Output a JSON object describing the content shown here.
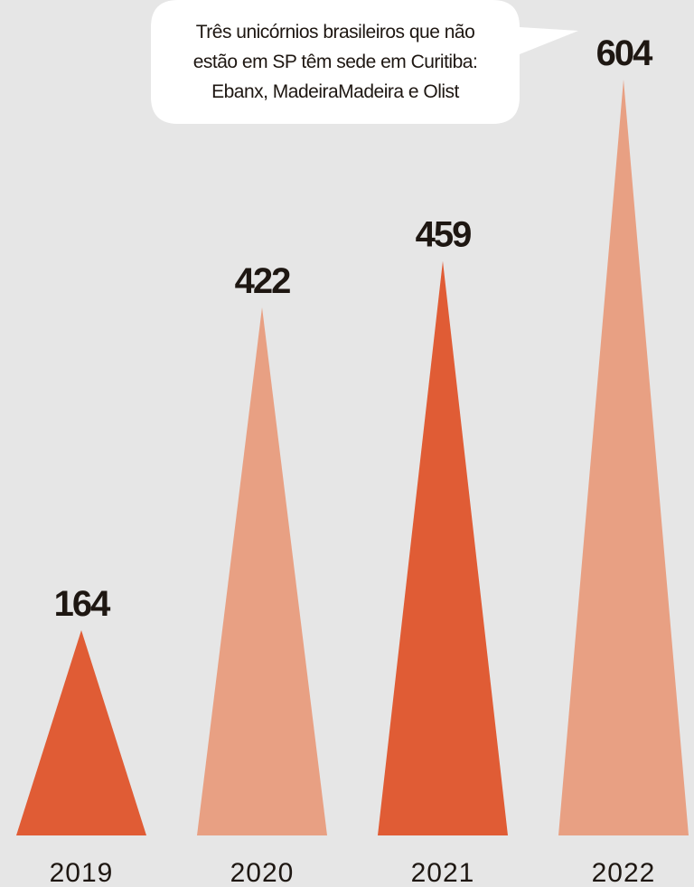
{
  "chart_data": {
    "type": "triangle-bar",
    "annotation": [
      "Três unicórnios brasileiros que não",
      "estão em SP têm sede em Curitiba:",
      "Ebanx, MadeiraMadeira e Olist"
    ],
    "categories": [
      "2019",
      "2020",
      "2021",
      "2022"
    ],
    "values": [
      164,
      422,
      459,
      604
    ],
    "colors": [
      "#e05c35",
      "#e8a083",
      "#e05c35",
      "#e8a083"
    ]
  }
}
